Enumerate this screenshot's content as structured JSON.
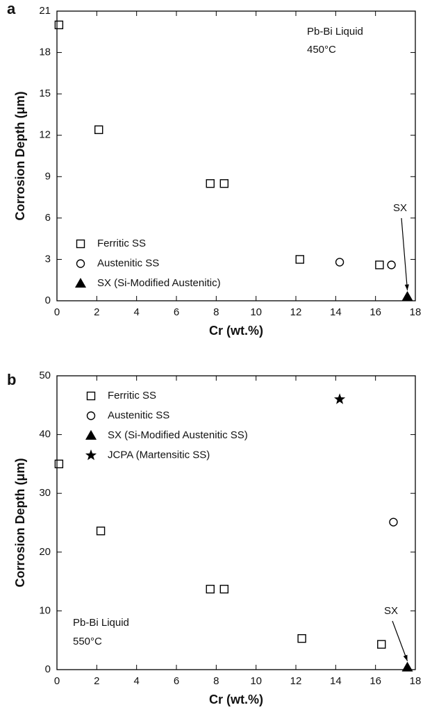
{
  "chart_data": [
    {
      "type": "scatter",
      "panel": "a",
      "xlabel": "Cr (wt.%)",
      "ylabel": "Corrosion Depth (μm)",
      "xlim": [
        0,
        18
      ],
      "xticks": [
        0,
        2,
        4,
        6,
        8,
        10,
        12,
        14,
        16,
        18
      ],
      "ylim": [
        0,
        21
      ],
      "yticks": [
        0,
        3,
        6,
        9,
        12,
        15,
        18,
        21
      ],
      "legend": "lower left",
      "annotations": [
        "Pb-Bi Liquid",
        "450°C",
        "SX"
      ],
      "series": [
        {
          "name": "Ferritic SS",
          "marker": "square",
          "color": "#000000",
          "x": [
            0.1,
            2.1,
            7.7,
            8.4,
            12.2,
            16.2
          ],
          "values": [
            20,
            12.4,
            8.5,
            8.5,
            3.0,
            2.6
          ]
        },
        {
          "name": "Austenitic SS",
          "marker": "circle",
          "color": "#000000",
          "x": [
            14.2,
            16.8
          ],
          "values": [
            2.8,
            2.6
          ]
        },
        {
          "name": "SX (Si-Modified Austenitic)",
          "marker": "triangle",
          "color": "#000000",
          "x": [
            17.6
          ],
          "values": [
            0.3
          ]
        }
      ]
    },
    {
      "type": "scatter",
      "panel": "b",
      "xlabel": "Cr (wt.%)",
      "ylabel": "Corrosion Depth (μm)",
      "xlim": [
        0,
        18
      ],
      "xticks": [
        0,
        2,
        4,
        6,
        8,
        10,
        12,
        14,
        16,
        18
      ],
      "ylim": [
        0,
        50
      ],
      "yticks": [
        0,
        10,
        20,
        30,
        40,
        50
      ],
      "legend": "upper left",
      "annotations": [
        "Pb-Bi Liquid",
        "550°C",
        "SX"
      ],
      "series": [
        {
          "name": "Ferritic SS",
          "marker": "square",
          "color": "#000000",
          "x": [
            0.1,
            2.2,
            7.7,
            8.4,
            12.3,
            16.3
          ],
          "values": [
            35,
            23.6,
            13.7,
            13.7,
            5.3,
            4.3
          ]
        },
        {
          "name": "Austenitic SS",
          "marker": "circle",
          "color": "#000000",
          "x": [
            16.9
          ],
          "values": [
            25.1
          ]
        },
        {
          "name": "SX (Si-Modified Austenitic SS)",
          "marker": "triangle",
          "color": "#000000",
          "x": [
            17.6
          ],
          "values": [
            0.4
          ]
        },
        {
          "name": "JCPA (Martensitic SS)",
          "marker": "star",
          "color": "#000000",
          "x": [
            14.2
          ],
          "values": [
            46
          ]
        }
      ]
    }
  ]
}
